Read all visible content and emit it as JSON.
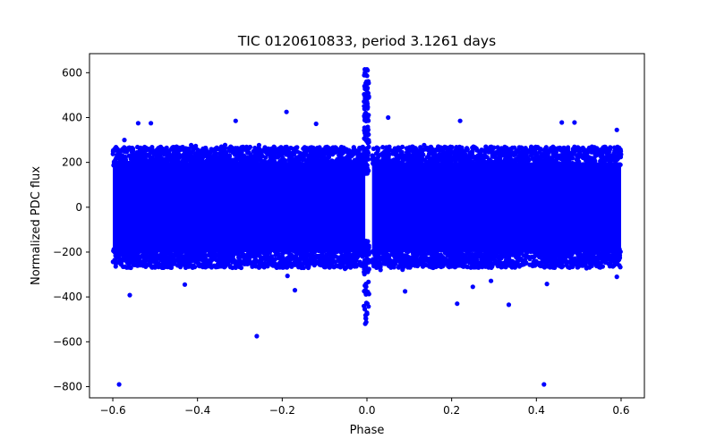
{
  "chart_data": {
    "type": "scatter",
    "title": "TIC 0120610833, period 3.1261 days",
    "xlabel": "Phase",
    "ylabel": "Normalized PDC flux",
    "xlim": [
      -0.655,
      0.655
    ],
    "ylim": [
      -850,
      685
    ],
    "x_ticks": [
      -0.6,
      -0.4,
      -0.2,
      0.0,
      0.2,
      0.4,
      0.6
    ],
    "x_tick_labels": [
      "−0.6",
      "−0.4",
      "−0.2",
      "0.0",
      "0.2",
      "0.4",
      "0.6"
    ],
    "y_ticks": [
      -800,
      -600,
      -400,
      -200,
      0,
      200,
      400,
      600
    ],
    "y_tick_labels": [
      "−800",
      "−600",
      "−400",
      "−200",
      "0",
      "200",
      "400",
      "600"
    ],
    "marker_color": "#0000ff",
    "grid": false,
    "series": [
      {
        "name": "PDC flux",
        "description": "Dense cloud of points spanning phase -0.6 to 0.6 with flux roughly -250 to +250 (occasional values to about +/-400), a narrow vertical spike near phase 0 reaching about +615 and dipping to about -520, and a small gap just right of phase 0.",
        "density_band": {
          "x_range": [
            -0.6,
            0.6
          ],
          "core_y_range": [
            -200,
            200
          ],
          "outer_y_range": [
            -300,
            300
          ]
        },
        "spike": {
          "x_center": 0.0,
          "y_max": 615,
          "y_min": -520
        },
        "points": [
          {
            "x": -0.585,
            "y": -790
          },
          {
            "x": 0.418,
            "y": -790
          },
          {
            "x": -0.26,
            "y": -575
          },
          {
            "x": 0.213,
            "y": -430
          },
          {
            "x": 0.335,
            "y": -435
          },
          {
            "x": -0.19,
            "y": 425
          },
          {
            "x": -0.54,
            "y": 375
          },
          {
            "x": -0.51,
            "y": 375
          },
          {
            "x": -0.31,
            "y": 385
          },
          {
            "x": -0.12,
            "y": 372
          },
          {
            "x": 0.05,
            "y": 400
          },
          {
            "x": 0.22,
            "y": 385
          },
          {
            "x": 0.46,
            "y": 378
          },
          {
            "x": 0.49,
            "y": 378
          },
          {
            "x": 0.59,
            "y": 345
          },
          {
            "x": -0.56,
            "y": -392
          },
          {
            "x": -0.43,
            "y": -345
          },
          {
            "x": -0.17,
            "y": -370
          },
          {
            "x": 0.09,
            "y": -375
          },
          {
            "x": 0.25,
            "y": -355
          },
          {
            "x": 0.425,
            "y": -342
          },
          {
            "x": 0.59,
            "y": -310
          },
          {
            "x": -0.005,
            "y": 615
          },
          {
            "x": 0.0,
            "y": 615
          },
          {
            "x": -0.002,
            "y": 590
          },
          {
            "x": -0.001,
            "y": 560
          },
          {
            "x": 0.001,
            "y": 530
          },
          {
            "x": -0.003,
            "y": 500
          },
          {
            "x": 0.0,
            "y": 470
          },
          {
            "x": -0.004,
            "y": -520
          },
          {
            "x": -0.003,
            "y": -495
          },
          {
            "x": 0.0,
            "y": -470
          },
          {
            "x": -0.005,
            "y": -455
          },
          {
            "x": 0.001,
            "y": -430
          }
        ]
      }
    ]
  }
}
